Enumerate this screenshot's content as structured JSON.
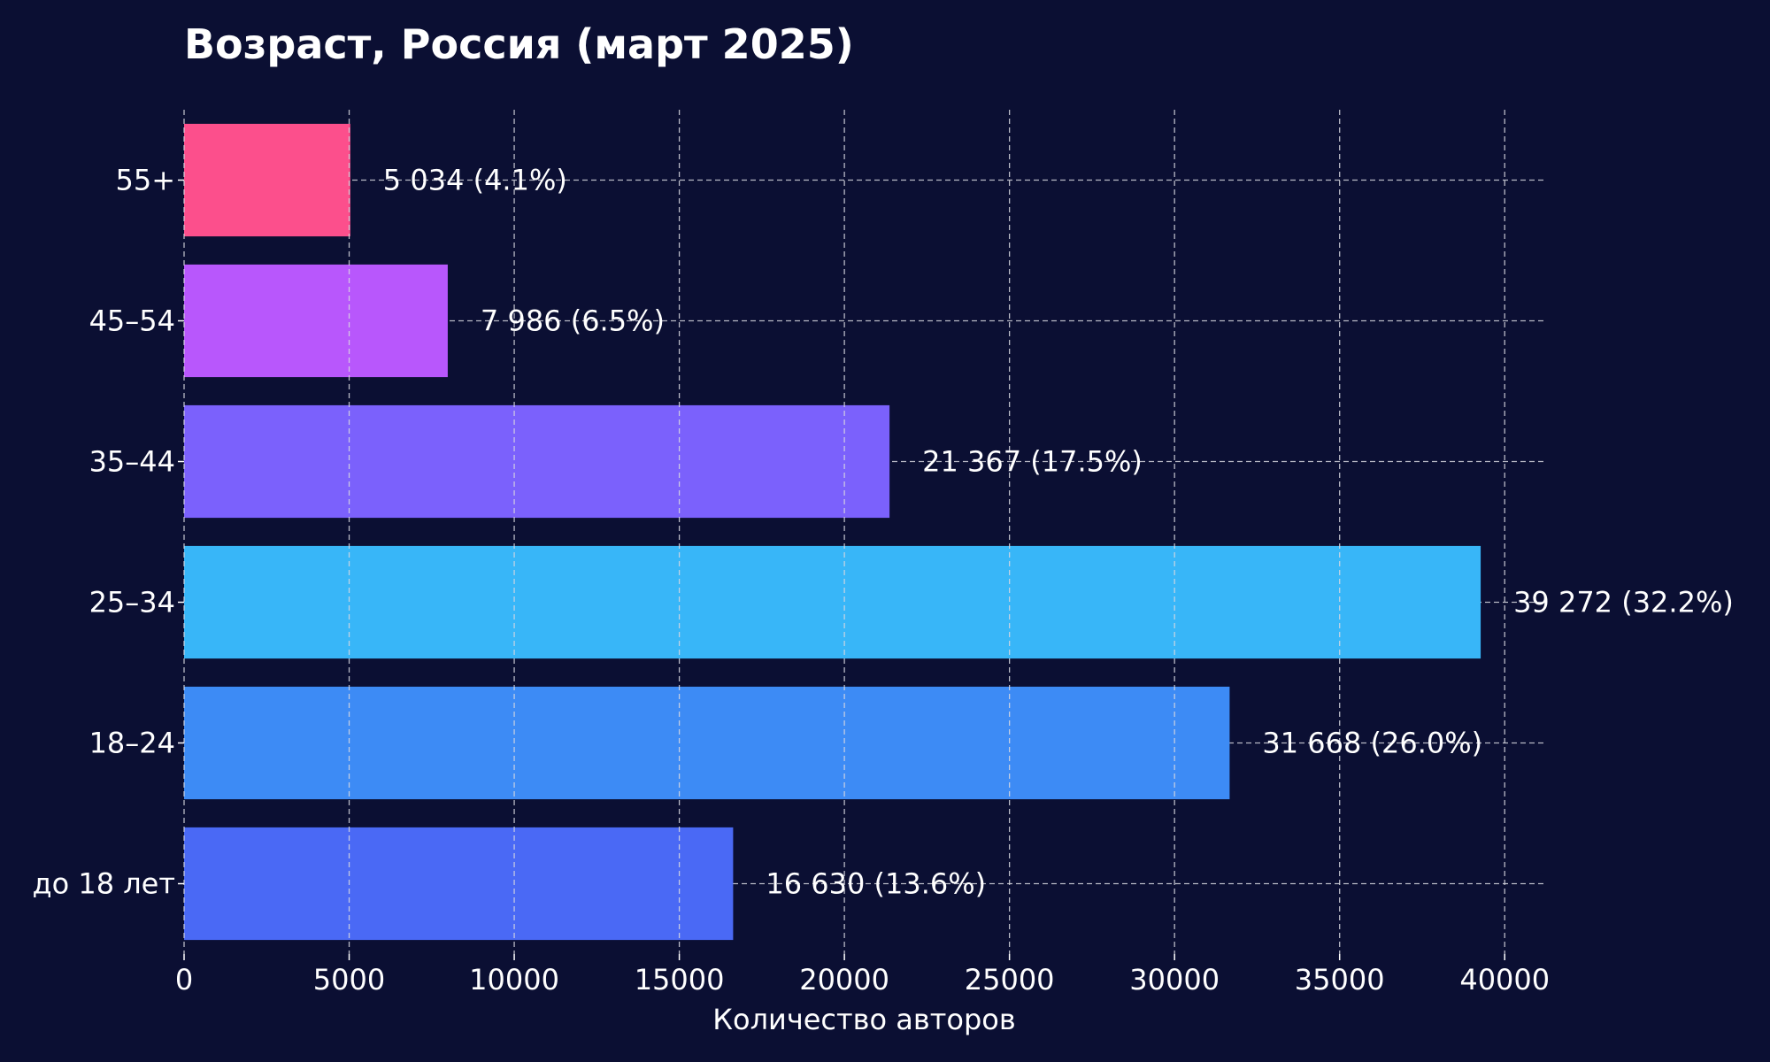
{
  "chart_data": {
    "type": "bar",
    "orientation": "horizontal",
    "title": "Возраст, Россия (март 2025)",
    "xlabel": "Количество авторов",
    "ylabel": "",
    "categories": [
      "до 18 лет",
      "18–24",
      "25–34",
      "35–44",
      "45–54",
      "55+"
    ],
    "values": [
      16630,
      31668,
      39272,
      21367,
      7986,
      5034
    ],
    "value_labels": [
      "16 630 (13.6%)",
      "31 668 (26.0%)",
      "39 272 (32.2%)",
      "21 367 (17.5%)",
      "7 986 (6.5%)",
      "5 034 (4.1%)"
    ],
    "colors": [
      "#4a69f5",
      "#3d8bf5",
      "#38b6f8",
      "#7b61fc",
      "#b857fc",
      "#fc4f8c"
    ],
    "xlim": [
      0,
      41200
    ],
    "xticks": [
      0,
      5000,
      10000,
      15000,
      20000,
      25000,
      30000,
      35000,
      40000
    ],
    "xtick_labels": [
      "0",
      "5000",
      "10000",
      "15000",
      "20000",
      "25000",
      "30000",
      "35000",
      "40000"
    ],
    "grid": true,
    "legend": "none",
    "background": "#0b0f33",
    "text_color": "#ffffff",
    "grid_color": "#d8d8e0"
  }
}
